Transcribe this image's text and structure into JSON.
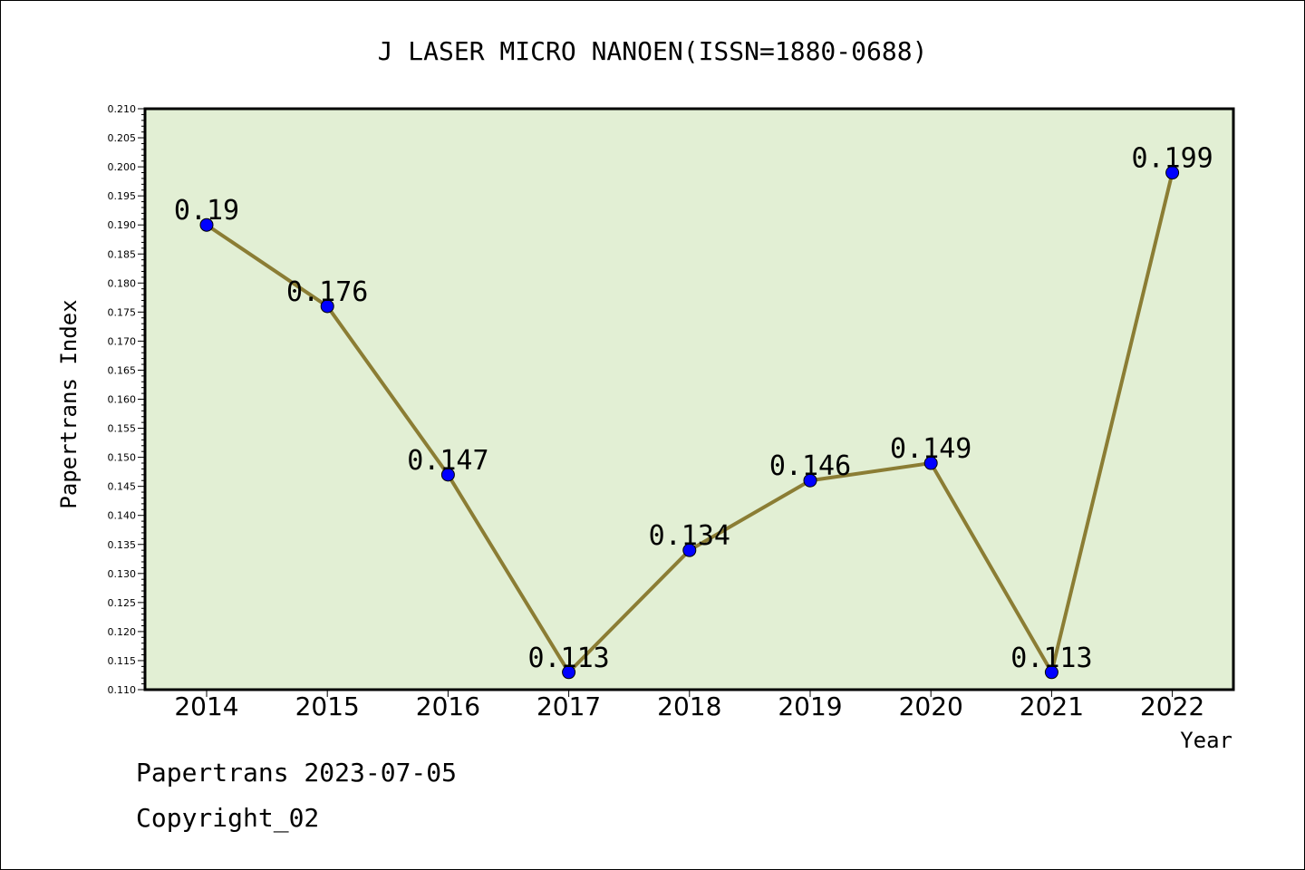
{
  "chart_data": {
    "type": "line",
    "title": "J LASER MICRO NANOEN(ISSN=1880-0688)",
    "xlabel": "Year",
    "ylabel": "Papertrans Index",
    "categories": [
      "2014",
      "2015",
      "2016",
      "2017",
      "2018",
      "2019",
      "2020",
      "2021",
      "2022"
    ],
    "series": [
      {
        "values": [
          0.19,
          0.176,
          0.147,
          0.113,
          0.134,
          0.146,
          0.149,
          0.113,
          0.199
        ]
      }
    ],
    "data_labels": [
      "0.19",
      "0.176",
      "0.147",
      "0.113",
      "0.134",
      "0.146",
      "0.149",
      "0.113",
      "0.199"
    ],
    "ylim": [
      0.11,
      0.21
    ],
    "y_ticks": [
      "0.110",
      "0.115",
      "0.120",
      "0.125",
      "0.130",
      "0.135",
      "0.140",
      "0.145",
      "0.150",
      "0.155",
      "0.160",
      "0.165",
      "0.170",
      "0.175",
      "0.180",
      "0.185",
      "0.190",
      "0.195",
      "0.200",
      "0.205",
      "0.210"
    ],
    "grid": false,
    "colors": {
      "line": "#8b7d34",
      "marker": "#0000ff",
      "plot_background": "#e2efd4"
    }
  },
  "footer": {
    "date_line": "Papertrans 2023-07-05",
    "copyright_line": "Copyright_02"
  }
}
